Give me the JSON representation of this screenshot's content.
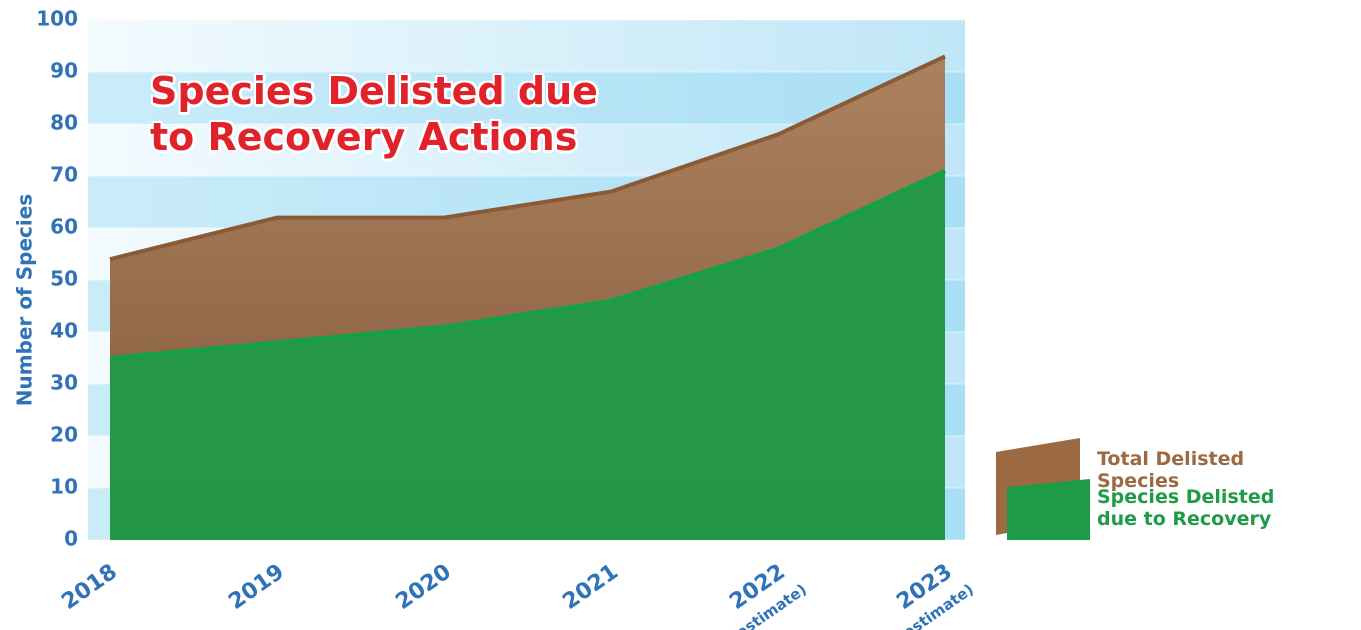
{
  "chart_data": {
    "type": "area",
    "title": "Species Delisted due to Recovery Actions",
    "y_label": "Number of Species",
    "categories": [
      "2018",
      "2019",
      "2020",
      "2021",
      "2022",
      "2023"
    ],
    "category_notes": [
      null,
      null,
      null,
      null,
      "(estimate)",
      "(estimate)"
    ],
    "series": [
      {
        "name": "Total Delisted Species",
        "color": "#9c6a42",
        "values": [
          54,
          62,
          62,
          67,
          78,
          93
        ]
      },
      {
        "name": "Species Delisted due to Recovery",
        "color": "#1f9b48",
        "values": [
          35,
          38,
          41,
          46,
          56,
          71
        ]
      }
    ],
    "ylim": [
      0,
      100
    ],
    "yticks": [
      0,
      10,
      20,
      30,
      40,
      50,
      60,
      70,
      80,
      90,
      100
    ],
    "grid": true,
    "legend": "bottom-right"
  }
}
